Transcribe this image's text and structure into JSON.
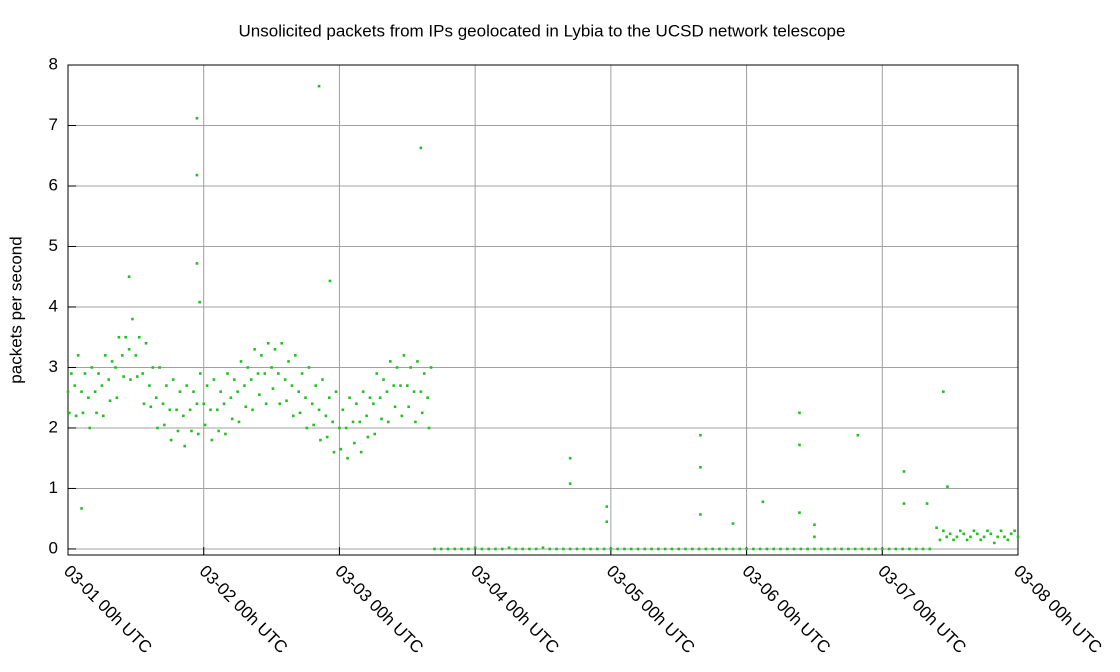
{
  "chart_data": {
    "type": "scatter",
    "title": "Unsolicited packets from IPs geolocated in Lybia to the UCSD network telescope",
    "ylabel": "packets per second",
    "xlim": [
      0,
      7
    ],
    "ylim": [
      -0.1,
      8
    ],
    "xticks": [
      {
        "value": 0,
        "label": "03-01 00h UTC"
      },
      {
        "value": 1,
        "label": "03-02 00h UTC"
      },
      {
        "value": 2,
        "label": "03-03 00h UTC"
      },
      {
        "value": 3,
        "label": "03-04 00h UTC"
      },
      {
        "value": 4,
        "label": "03-05 00h UTC"
      },
      {
        "value": 5,
        "label": "03-06 00h UTC"
      },
      {
        "value": 6,
        "label": "03-07 00h UTC"
      },
      {
        "value": 7,
        "label": "03-08 00h UTC"
      }
    ],
    "yticks": [
      0,
      1,
      2,
      3,
      4,
      5,
      6,
      7,
      8
    ],
    "grid": true,
    "series": [
      {
        "color": "#1fc01f",
        "x": [
          0,
          0.05,
          0.1,
          0.15,
          0.2,
          0.25,
          0.3,
          0.35,
          0.4,
          0.45,
          0.5,
          0.55,
          0.6,
          0.65,
          0.7,
          0.75,
          0.8,
          0.85,
          0.9,
          0.95,
          1,
          1.05,
          1.1,
          1.15,
          1.2,
          1.25,
          1.3,
          1.35,
          1.4,
          1.45,
          1.5,
          1.55,
          1.6,
          1.65,
          1.7,
          1.75,
          1.8,
          1.85,
          1.9,
          1.95,
          2,
          2.05,
          2.1,
          2.15,
          2.2,
          2.25,
          2.3,
          2.35,
          2.4,
          2.45,
          2.5,
          2.55,
          2.6,
          2.65
        ],
        "values": [
          2.6,
          2.7,
          2.6,
          2.5,
          2.6,
          2.7,
          2.8,
          3.0,
          3.2,
          3.3,
          3.2,
          2.9,
          2.7,
          2.5,
          2.4,
          2.3,
          2.3,
          2.2,
          2.3,
          2.4,
          2.4,
          2.3,
          2.3,
          2.4,
          2.5,
          2.6,
          2.7,
          2.8,
          2.9,
          2.9,
          3.0,
          2.9,
          2.8,
          2.7,
          2.6,
          2.5,
          2.4,
          2.3,
          2.2,
          2.1,
          2.0,
          2.0,
          2.1,
          2.1,
          2.2,
          2.4,
          2.5,
          2.6,
          2.7,
          2.7,
          2.7,
          2.6,
          2.6,
          2.5
        ]
      },
      {
        "color": "#1fc01f",
        "x": [
          0.025,
          0.075,
          0.125,
          0.175,
          0.225,
          0.275,
          0.325,
          0.375,
          0.425,
          0.475,
          0.525,
          0.575,
          0.625,
          0.675,
          0.725,
          0.775,
          0.825,
          0.875,
          0.925,
          0.975,
          1.025,
          1.075,
          1.125,
          1.175,
          1.225,
          1.275,
          1.325,
          1.375,
          1.425,
          1.475,
          1.525,
          1.575,
          1.625,
          1.675,
          1.725,
          1.775,
          1.825,
          1.875,
          1.925,
          1.975,
          2.025,
          2.075,
          2.125,
          2.175,
          2.225,
          2.275,
          2.325,
          2.375,
          2.425,
          2.475,
          2.525,
          2.575,
          2.625,
          2.675
        ],
        "values": [
          2.9,
          3.2,
          2.9,
          3.0,
          2.9,
          3.2,
          3.1,
          3.5,
          3.5,
          3.8,
          3.5,
          3.4,
          3.0,
          3.0,
          2.7,
          2.8,
          2.6,
          2.7,
          2.6,
          2.9,
          2.7,
          2.8,
          2.6,
          2.9,
          2.8,
          3.1,
          3.0,
          3.3,
          3.2,
          3.4,
          3.3,
          3.4,
          3.1,
          3.2,
          2.9,
          3.0,
          2.7,
          2.8,
          2.5,
          2.6,
          2.3,
          2.5,
          2.4,
          2.6,
          2.5,
          2.9,
          2.8,
          3.1,
          3.0,
          3.2,
          3.0,
          3.1,
          2.9,
          3.0
        ]
      },
      {
        "color": "#1fc01f",
        "x": [
          0.01,
          0.06,
          0.11,
          0.16,
          0.21,
          0.26,
          0.31,
          0.36,
          0.41,
          0.46,
          0.51,
          0.56,
          0.61,
          0.66,
          0.71,
          0.76,
          0.81,
          0.86,
          0.91,
          0.96,
          1.01,
          1.06,
          1.11,
          1.16,
          1.21,
          1.26,
          1.31,
          1.36,
          1.41,
          1.46,
          1.51,
          1.56,
          1.61,
          1.66,
          1.71,
          1.76,
          1.81,
          1.86,
          1.91,
          1.96,
          2.01,
          2.06,
          2.11,
          2.16,
          2.21,
          2.26,
          2.31,
          2.36,
          2.41,
          2.46,
          2.51,
          2.56,
          2.61,
          2.66
        ],
        "values": [
          2.25,
          2.2,
          2.25,
          2.0,
          2.25,
          2.2,
          2.45,
          2.5,
          2.85,
          2.8,
          2.85,
          2.4,
          2.35,
          2.0,
          2.05,
          1.8,
          1.95,
          1.7,
          1.95,
          1.9,
          2.05,
          1.8,
          1.95,
          1.9,
          2.15,
          2.1,
          2.35,
          2.3,
          2.55,
          2.4,
          2.65,
          2.4,
          2.45,
          2.2,
          2.25,
          2.0,
          2.05,
          1.8,
          1.85,
          1.6,
          1.65,
          1.5,
          1.75,
          1.6,
          1.85,
          1.9,
          2.15,
          2.1,
          2.35,
          2.2,
          2.35,
          2.1,
          2.25,
          2.0
        ]
      },
      {
        "color": "#1fc01f",
        "x": [
          2.7,
          2.75,
          2.8,
          2.85,
          2.9,
          2.95,
          3,
          3.05,
          3.1,
          3.15,
          3.2,
          3.25,
          3.3,
          3.35,
          3.4,
          3.45,
          3.5,
          3.55,
          3.6,
          3.65,
          3.7,
          3.75,
          3.8,
          3.85,
          3.9,
          3.95,
          4,
          4.05,
          4.1,
          4.15,
          4.2,
          4.25,
          4.3,
          4.35,
          4.4,
          4.45,
          4.5,
          4.55,
          4.6,
          4.65,
          4.7,
          4.75,
          4.8,
          4.85,
          4.9,
          4.95,
          5,
          5.05,
          5.1,
          5.15,
          5.2,
          5.25,
          5.3,
          5.35,
          5.4,
          5.45,
          5.5,
          5.55,
          5.6,
          5.65,
          5.7,
          5.75,
          5.8,
          5.85,
          5.9,
          5.95,
          6,
          6.05,
          6.1,
          6.15,
          6.2,
          6.25,
          6.3,
          6.35
        ],
        "values": [
          0,
          0,
          0,
          0,
          0,
          0,
          0.02,
          0,
          0,
          0,
          0,
          0.02,
          0,
          0,
          0,
          0,
          0.02,
          0,
          0,
          0,
          0,
          0,
          0,
          0,
          0,
          0,
          0,
          0,
          0,
          0,
          0,
          0,
          0,
          0,
          0,
          0,
          0,
          0,
          0,
          0,
          0,
          0,
          0,
          0,
          0,
          0,
          0,
          0,
          0,
          0,
          0,
          0,
          0,
          0,
          0,
          0,
          0,
          0,
          0,
          0,
          0,
          0,
          0,
          0,
          0,
          0,
          0,
          0,
          0,
          0,
          0,
          0,
          0,
          0
        ]
      },
      {
        "color": "#1fc01f",
        "x": [
          6.4,
          6.45,
          6.5,
          6.55,
          6.6,
          6.65,
          6.7,
          6.75,
          6.8,
          6.85,
          6.9,
          6.95,
          7.0
        ],
        "values": [
          0.35,
          0.3,
          0.25,
          0.2,
          0.25,
          0.2,
          0.25,
          0.2,
          0.25,
          0.2,
          0.2,
          0.25,
          0.2
        ]
      },
      {
        "color": "#1fc01f",
        "x": [
          6.425,
          6.475,
          6.525,
          6.575,
          6.625,
          6.675,
          6.725,
          6.775,
          6.825,
          6.875,
          6.925,
          6.975
        ],
        "values": [
          0.15,
          0.2,
          0.15,
          0.3,
          0.15,
          0.3,
          0.15,
          0.3,
          0.1,
          0.3,
          0.15,
          0.3
        ]
      },
      {
        "color": "#1fc01f",
        "x": [
          0.1,
          0.45,
          0.95,
          0.95,
          0.95,
          0.97,
          1.85,
          1.93,
          2.6,
          3.7,
          3.7,
          3.97,
          3.97,
          4.66,
          4.66,
          4.66,
          4.9,
          5.12,
          5.39,
          5.39,
          5.39,
          5.5,
          5.5,
          5.82,
          6.16,
          6.16,
          6.33,
          6.45,
          6.48
        ],
        "values": [
          0.67,
          4.5,
          7.12,
          6.18,
          4.72,
          4.08,
          7.65,
          4.43,
          6.63,
          1.5,
          1.08,
          0.7,
          0.45,
          1.88,
          1.35,
          0.57,
          0.42,
          0.78,
          2.25,
          1.72,
          0.6,
          0.4,
          0.2,
          1.88,
          1.28,
          0.75,
          0.75,
          2.6,
          1.03
        ]
      }
    ]
  }
}
